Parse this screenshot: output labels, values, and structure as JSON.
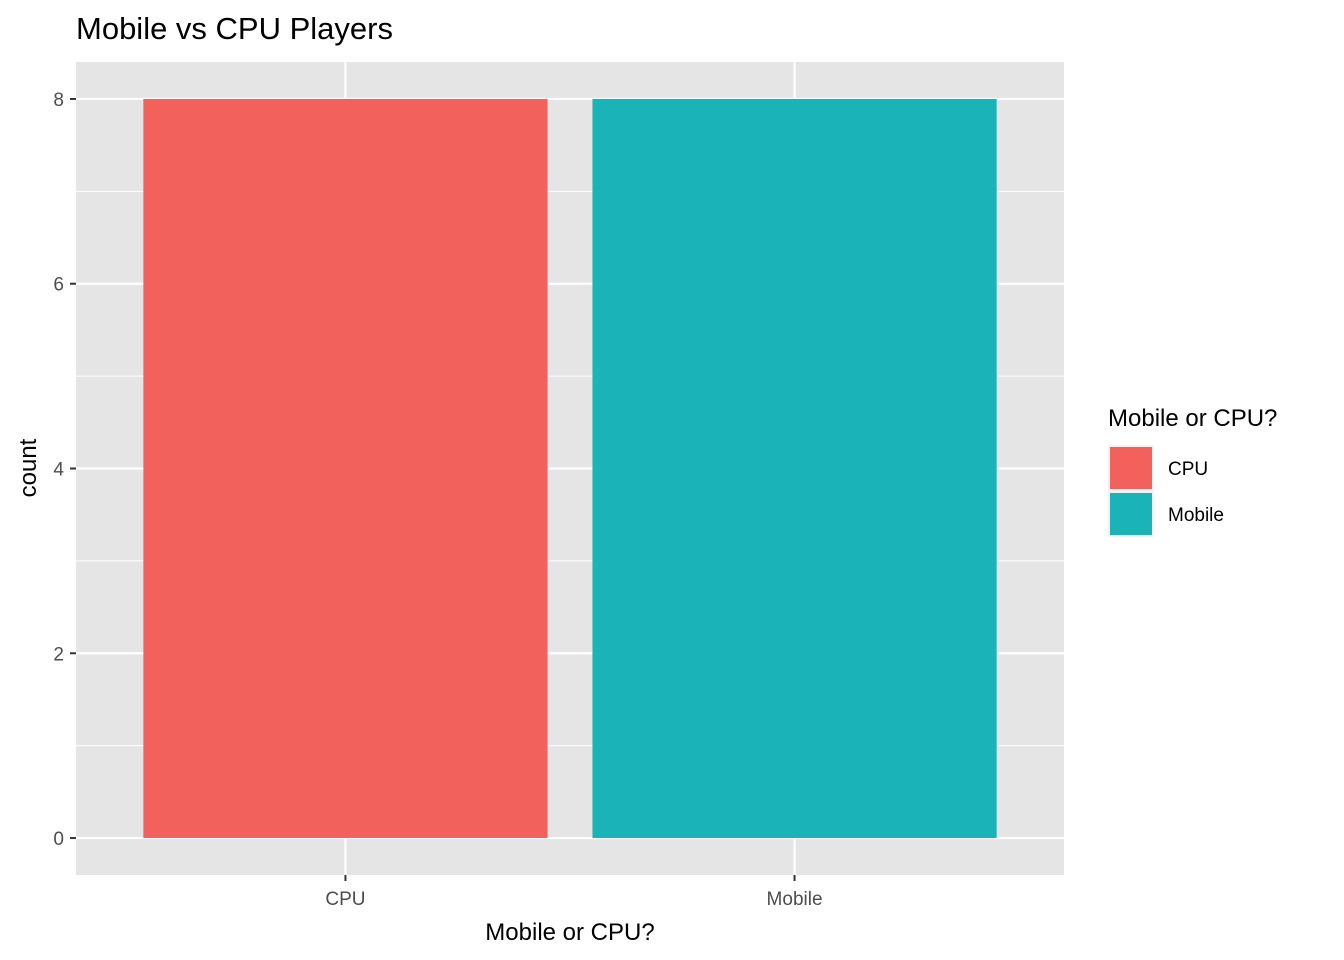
{
  "chart_data": {
    "type": "bar",
    "title": "Mobile vs CPU Players",
    "xlabel": "Mobile or CPU?",
    "ylabel": "count",
    "categories": [
      "CPU",
      "Mobile"
    ],
    "values": [
      8,
      8
    ],
    "colors": [
      "#F2615C",
      "#1AB3B8"
    ],
    "ylim": [
      -0.4,
      8.4
    ],
    "yticks": [
      0,
      2,
      4,
      6,
      8
    ],
    "ytick_labels": [
      "0",
      "2",
      "4",
      "6",
      "8"
    ],
    "grid": true,
    "panel_background": "#E5E5E5",
    "gridline_color": "#FFFFFF",
    "legend": {
      "title": "Mobile or CPU?",
      "position": "right",
      "entries": [
        "CPU",
        "Mobile"
      ]
    }
  }
}
